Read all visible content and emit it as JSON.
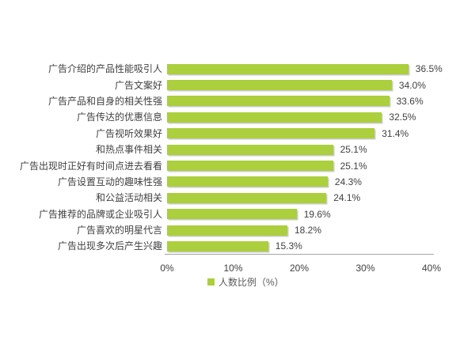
{
  "chart_data": {
    "type": "bar",
    "orientation": "horizontal",
    "categories": [
      "广告介绍的产品性能吸引人",
      "广告文案好",
      "广告产品和自身的相关性强",
      "广告传达的优惠信息",
      "广告视听效果好",
      "和热点事件相关",
      "广告出现时正好有时间点进去看看",
      "广告设置互动的趣味性强",
      "和公益活动相关",
      "广告推荐的品牌或企业吸引人",
      "广告喜欢的明星代言",
      "广告出现多次后产生兴趣"
    ],
    "values": [
      36.5,
      34.0,
      33.6,
      32.5,
      31.4,
      25.1,
      25.1,
      24.3,
      24.1,
      19.6,
      18.2,
      15.3
    ],
    "value_labels": [
      "36.5%",
      "34.0%",
      "33.6%",
      "32.5%",
      "31.4%",
      "25.1%",
      "25.1%",
      "24.3%",
      "24.1%",
      "19.6%",
      "18.2%",
      "15.3%"
    ],
    "x_ticks": [
      "0%",
      "10%",
      "20%",
      "30%",
      "40%"
    ],
    "x_tick_values": [
      0,
      10,
      20,
      30,
      40
    ],
    "xlim": [
      0,
      40
    ],
    "grid": "off",
    "legend_position": "bottom",
    "legend_label": "人数比例（%）",
    "bar_color": "#abcf3d",
    "text_color": "#404040",
    "axis_color": "#a6a6a6"
  }
}
